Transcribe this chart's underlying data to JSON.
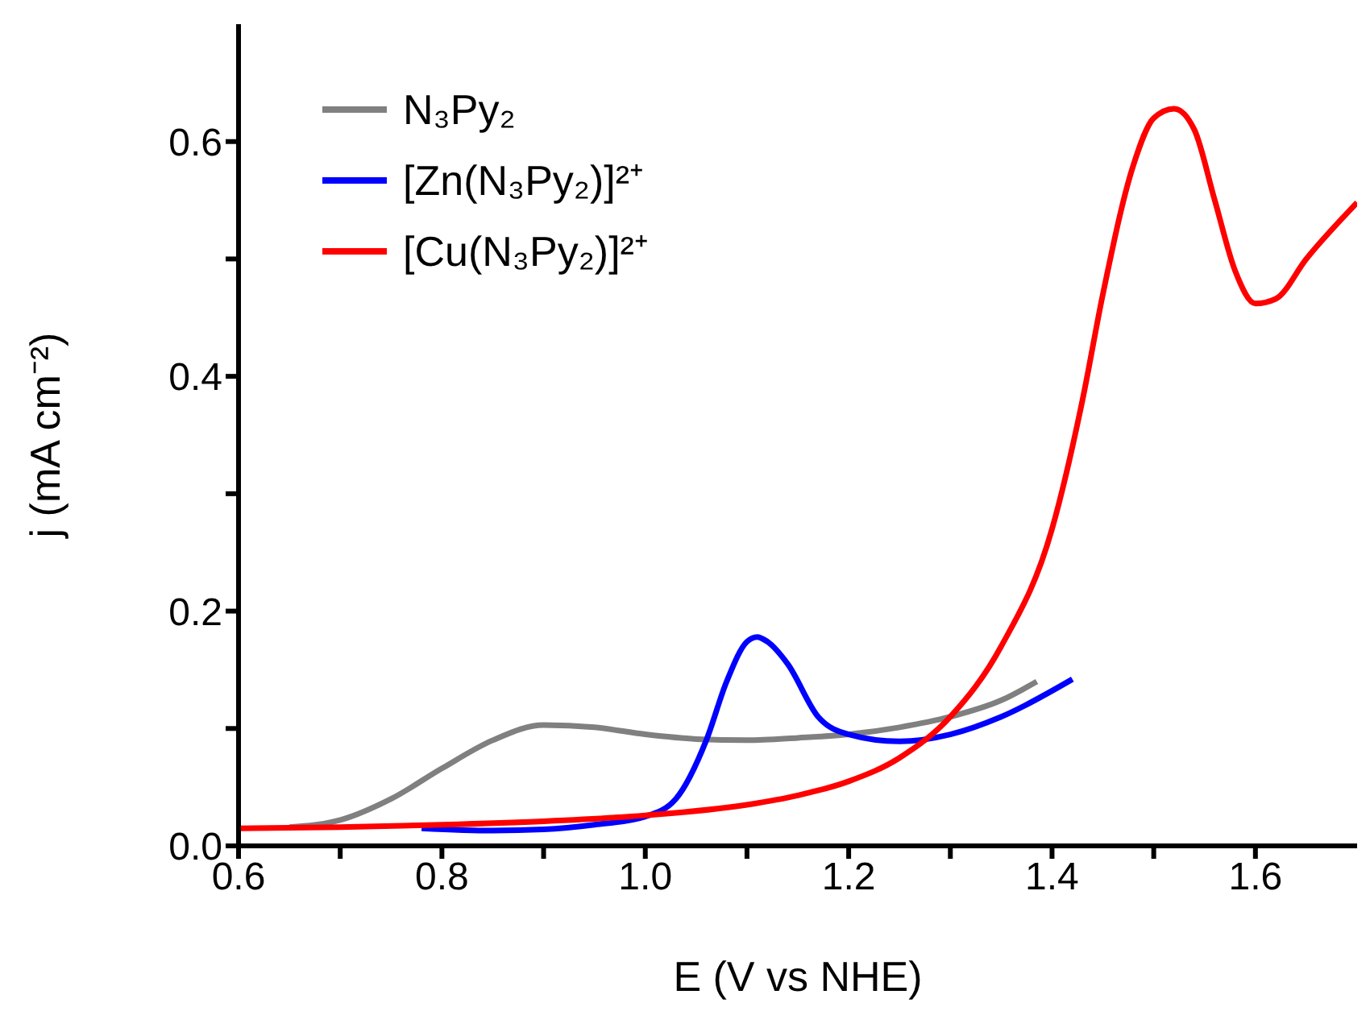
{
  "chart_data": {
    "type": "line",
    "xlabel": "E (V vs NHE)",
    "ylabel": "j (mA cm⁻²)",
    "xlim": [
      0.6,
      1.7
    ],
    "ylim": [
      0,
      0.7
    ],
    "xticks": [
      0.6,
      {
        "value": 0.7,
        "label": null
      },
      0.8,
      {
        "value": 0.9,
        "label": null
      },
      {
        "value": 1.0,
        "label": "1.0"
      },
      {
        "value": 1.1,
        "label": null
      },
      1.2,
      {
        "value": 1.3,
        "label": null
      },
      1.4,
      {
        "value": 1.5,
        "label": null
      },
      1.6
    ],
    "yticks": [
      {
        "value": 0,
        "label": "0.0"
      },
      {
        "value": 0.1,
        "label": null
      },
      0.2,
      {
        "value": 0.3,
        "label": null
      },
      0.4,
      {
        "value": 0.5,
        "label": null
      },
      0.6
    ],
    "legend": "top left",
    "marker": "none",
    "line_style": "solid",
    "grid": false,
    "series": [
      {
        "name": "N₃Py₂",
        "color": "#808080",
        "x": [
          0.65,
          0.7,
          0.75,
          0.8,
          0.85,
          0.9,
          0.95,
          1.0,
          1.05,
          1.1,
          1.15,
          1.2,
          1.25,
          1.3,
          1.35,
          1.385
        ],
        "values": [
          0.016,
          0.022,
          0.04,
          0.066,
          0.09,
          0.103,
          0.101,
          0.095,
          0.091,
          0.09,
          0.092,
          0.095,
          0.101,
          0.11,
          0.124,
          0.14
        ]
      },
      {
        "name": "[Zn(N₃Py₂)]²⁺",
        "color": "#0000ff",
        "x": [
          0.78,
          0.85,
          0.9,
          0.95,
          1.0,
          1.03,
          1.06,
          1.08,
          1.1,
          1.11,
          1.12,
          1.14,
          1.17,
          1.2,
          1.25,
          1.3,
          1.35,
          1.42
        ],
        "values": [
          0.015,
          0.013,
          0.014,
          0.018,
          0.025,
          0.04,
          0.09,
          0.14,
          0.174,
          0.178,
          0.174,
          0.155,
          0.11,
          0.095,
          0.089,
          0.095,
          0.11,
          0.142
        ]
      },
      {
        "name": "[Cu(N₃Py₂)]²⁺",
        "color": "#ff0000",
        "x": [
          0.6,
          0.7,
          0.8,
          0.9,
          1.0,
          1.1,
          1.15,
          1.2,
          1.25,
          1.3,
          1.35,
          1.4,
          1.43,
          1.45,
          1.48,
          1.5,
          1.52,
          1.54,
          1.56,
          1.58,
          1.6,
          1.62,
          1.65,
          1.7
        ],
        "values": [
          0.015,
          0.016,
          0.018,
          0.021,
          0.026,
          0.035,
          0.043,
          0.055,
          0.075,
          0.11,
          0.17,
          0.27,
          0.38,
          0.47,
          0.58,
          0.62,
          0.628,
          0.61,
          0.55,
          0.49,
          0.462,
          0.466,
          0.5,
          0.548
        ]
      }
    ]
  }
}
